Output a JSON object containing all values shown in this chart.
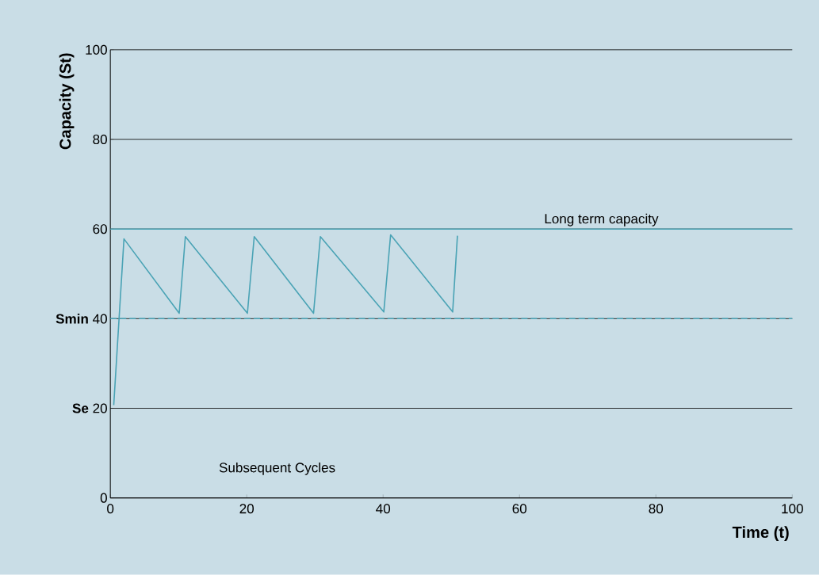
{
  "chart_data": {
    "type": "line",
    "xlabel": "Time (t)",
    "ylabel": "Capacity (St)",
    "x": [
      0.5,
      2.0,
      10.1,
      11.0,
      20.1,
      21.1,
      29.8,
      30.8,
      40.1,
      41.1,
      50.2,
      50.9
    ],
    "series": [
      {
        "color": "#4aa3b5",
        "values": [
          20.7,
          57.8,
          41.2,
          58.3,
          41.2,
          58.3,
          41.2,
          58.3,
          41.5,
          58.7,
          41.5,
          58.5
        ]
      }
    ],
    "xlim": [
      0,
      100
    ],
    "ylim": [
      0,
      100
    ],
    "xticks": [
      0,
      20,
      40,
      60,
      80,
      100
    ],
    "yticks": [
      0,
      {
        "value": 20,
        "label": "**Se** 20"
      },
      {
        "value": 40,
        "label": "**Smin** 40"
      },
      60,
      80,
      100
    ],
    "grid": "y",
    "marker": "none",
    "line_style": "solid",
    "ref_lines": [
      {
        "axis": "y",
        "value": 60,
        "label": "Long term capacity",
        "color": "#4aa3b5",
        "line_style": "solid"
      },
      {
        "axis": "y",
        "value": 40,
        "color": "#4aa3b5",
        "line_style": "dashed"
      }
    ],
    "annotations": [
      "Subsequent Cycles"
    ]
  }
}
